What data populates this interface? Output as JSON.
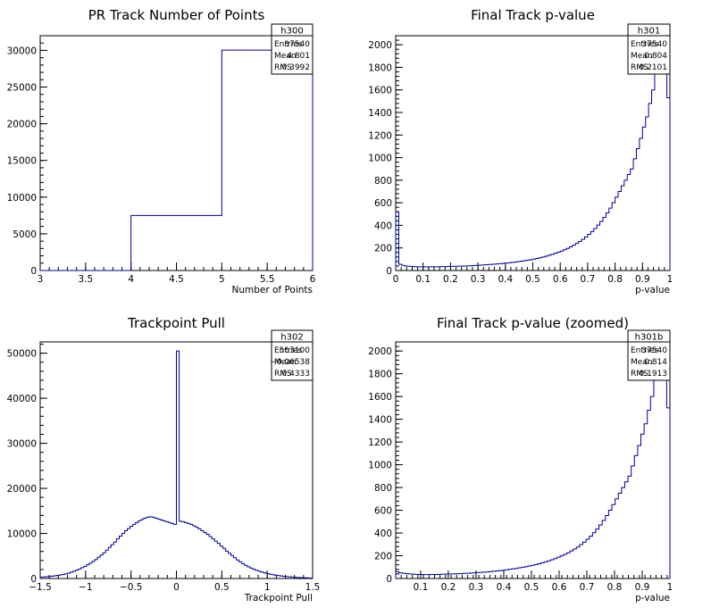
{
  "chart_data": [
    {
      "type": "histogram",
      "title": "PR Track Number of Points",
      "xlabel": "Number of Points",
      "ylabel": "",
      "xlim": [
        3,
        6
      ],
      "ylim": [
        0,
        32000
      ],
      "xticks": [
        "3",
        "3.5",
        "4",
        "4.5",
        "5",
        "5.5",
        "6"
      ],
      "yticks": [
        "0",
        "5000",
        "10000",
        "15000",
        "20000",
        "25000",
        "30000"
      ],
      "bin_edges": [
        3,
        4,
        5,
        6
      ],
      "values": [
        0,
        7500,
        30040
      ],
      "stats": {
        "name": "h300",
        "rows": [
          {
            "label": "Entries",
            "value": "37540"
          },
          {
            "label": "Mean",
            "value": "4.801"
          },
          {
            "label": "RMS",
            "value": "0.3992"
          }
        ]
      },
      "line_color": "#000099"
    },
    {
      "type": "histogram",
      "title": "Final Track p-value",
      "xlabel": "p-value",
      "ylabel": "",
      "xlim": [
        0,
        1
      ],
      "ylim": [
        0,
        2080
      ],
      "xticks": [
        "0",
        "0.1",
        "0.2",
        "0.3",
        "0.4",
        "0.5",
        "0.6",
        "0.7",
        "0.8",
        "0.9",
        "1"
      ],
      "yticks": [
        "0",
        "200",
        "400",
        "600",
        "800",
        "1000",
        "1200",
        "1400",
        "1600",
        "1800",
        "2000"
      ],
      "bin_edges_range": [
        0,
        1
      ],
      "values": [
        520,
        55,
        45,
        40,
        38,
        36,
        34,
        33,
        33,
        33,
        32,
        33,
        34,
        33,
        34,
        35,
        35,
        36,
        37,
        38,
        38,
        39,
        40,
        41,
        42,
        44,
        45,
        46,
        48,
        50,
        52,
        54,
        56,
        58,
        60,
        63,
        66,
        69,
        72,
        75,
        79,
        83,
        87,
        91,
        96,
        101,
        107,
        113,
        120,
        127,
        135,
        143,
        152,
        162,
        172,
        184,
        196,
        210,
        224,
        240,
        257,
        276,
        297,
        320,
        345,
        372,
        402,
        435,
        471,
        510,
        553,
        600,
        650,
        700,
        750,
        800,
        850,
        900,
        990,
        1080,
        1170,
        1270,
        1360,
        1480,
        1600,
        1750,
        1950,
        2000,
        1800,
        1530
      ],
      "stats": {
        "name": "h301",
        "rows": [
          {
            "label": "Entries",
            "value": "37540"
          },
          {
            "label": "Mean",
            "value": "0.804"
          },
          {
            "label": "RMS",
            "value": "0.2101"
          }
        ]
      },
      "line_color": "#000099"
    },
    {
      "type": "histogram",
      "title": "Trackpoint Pull",
      "xlabel": "Trackpoint Pull",
      "ylabel": "",
      "xlim": [
        -1.5,
        1.5
      ],
      "ylim": [
        0,
        52500
      ],
      "xticks": [
        "−1.5",
        "−1",
        "−0.5",
        "0",
        "0.5",
        "1",
        "1.5"
      ],
      "yticks": [
        "0",
        "10000",
        "20000",
        "30000",
        "40000",
        "50000"
      ],
      "bin_edges_range": [
        -1.5,
        1.5
      ],
      "values": [
        300,
        350,
        400,
        450,
        520,
        600,
        700,
        800,
        900,
        1050,
        1200,
        1400,
        1600,
        1850,
        2100,
        2400,
        2700,
        3050,
        3400,
        3800,
        4200,
        4700,
        5200,
        5700,
        6300,
        6900,
        7500,
        8100,
        8800,
        9400,
        10000,
        10600,
        11100,
        11600,
        12000,
        12400,
        12800,
        13100,
        13400,
        13600,
        13700,
        13600,
        13400,
        13200,
        13000,
        12800,
        12600,
        12400,
        12200,
        12000,
        50500,
        12700,
        12600,
        12400,
        12200,
        12000,
        11700,
        11400,
        11000,
        10600,
        10200,
        9800,
        9300,
        8800,
        8300,
        7800,
        7200,
        6700,
        6100,
        5600,
        5100,
        4600,
        4100,
        3700,
        3300,
        2900,
        2600,
        2300,
        2050,
        1800,
        1600,
        1400,
        1250,
        1100,
        950,
        850,
        750,
        650,
        560,
        480,
        420,
        360,
        310,
        270,
        230,
        200,
        170,
        150,
        130,
        110
      ],
      "stats": {
        "name": "h302",
        "rows": [
          {
            "label": "Entries",
            "value": "563100"
          },
          {
            "label": "Mean",
            "value": "−0.06538"
          },
          {
            "label": "RMS",
            "value": "0.4333"
          }
        ]
      },
      "line_color": "#000099"
    },
    {
      "type": "histogram",
      "title": "Final Track p-value (zoomed)",
      "xlabel": "p-value",
      "ylabel": "",
      "xlim": [
        0.01,
        1
      ],
      "ylim": [
        0,
        2080
      ],
      "xticks": [
        "0.1",
        "0.2",
        "0.3",
        "0.4",
        "0.5",
        "0.6",
        "0.7",
        "0.8",
        "0.9",
        "1"
      ],
      "yticks": [
        "0",
        "200",
        "400",
        "600",
        "800",
        "1000",
        "1200",
        "1400",
        "1600",
        "1800",
        "2000"
      ],
      "bin_edges_range": [
        0.01,
        1
      ],
      "values": [
        60,
        50,
        45,
        42,
        40,
        38,
        36,
        35,
        34,
        34,
        34,
        35,
        35,
        36,
        37,
        38,
        39,
        40,
        41,
        42,
        43,
        45,
        46,
        48,
        50,
        52,
        54,
        56,
        58,
        61,
        64,
        67,
        70,
        73,
        77,
        81,
        85,
        89,
        94,
        99,
        104,
        110,
        116,
        123,
        130,
        138,
        146,
        155,
        165,
        175,
        187,
        199,
        212,
        226,
        242,
        259,
        277,
        298,
        320,
        345,
        372,
        402,
        435,
        471,
        510,
        553,
        600,
        650,
        700,
        750,
        800,
        850,
        900,
        990,
        1080,
        1170,
        1270,
        1360,
        1480,
        1600,
        1750,
        1950,
        2000,
        1800,
        1500
      ],
      "stats": {
        "name": "h301b",
        "rows": [
          {
            "label": "Entries",
            "value": "37540"
          },
          {
            "label": "Mean",
            "value": "0.814"
          },
          {
            "label": "RMS",
            "value": "0.1913"
          }
        ]
      },
      "line_color": "#000099"
    }
  ]
}
